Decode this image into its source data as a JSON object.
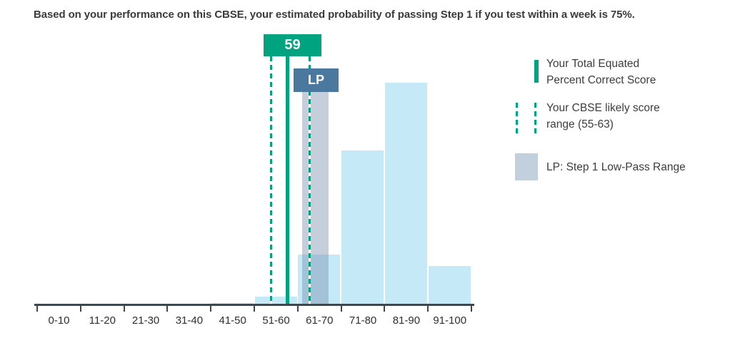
{
  "title": "Based on your performance on this CBSE, your estimated probability of passing Step 1 if you test within a week is 75%.",
  "colors": {
    "score_green": "#00a380",
    "lp_steel_blue": "#4a789e",
    "bar_light_blue": "#c5e9f6",
    "low_pass_band": "#c2cfdc",
    "axis": "#3d474e",
    "text": "#3b3b3b"
  },
  "chart_data": {
    "type": "bar",
    "title": "Based on your performance on this CBSE, your estimated probability of passing Step 1 if you test within a week is 75%.",
    "categories": [
      "0-10",
      "11-20",
      "21-30",
      "31-40",
      "41-50",
      "51-60",
      "61-70",
      "71-80",
      "81-90",
      "91-100"
    ],
    "values": [
      0,
      0,
      0,
      0,
      0.3,
      1.7,
      10.6,
      32.6,
      47.0,
      8.2
    ],
    "values_note": "estimated relative frequency (%); chart shows no y-axis",
    "xlabel": "",
    "ylabel": "",
    "ylim": [
      0,
      50
    ],
    "grid": false,
    "annotations": {
      "score_marker": {
        "label": "59",
        "value": 59
      },
      "likely_range": {
        "min": 55,
        "max": 63
      },
      "low_pass": {
        "label": "LP",
        "approx_range": [
          61,
          67
        ]
      }
    },
    "legend": {
      "position": "right",
      "items": [
        {
          "swatch": "solid-green-line",
          "lines": [
            "Your Total Equated",
            "Percent Correct Score"
          ]
        },
        {
          "swatch": "dashed-green-lines",
          "lines": [
            "Your CBSE likely score",
            "range (55-63)"
          ]
        },
        {
          "swatch": "gray-box",
          "lines": [
            "LP: Step 1 Low-Pass Range"
          ]
        }
      ]
    }
  }
}
